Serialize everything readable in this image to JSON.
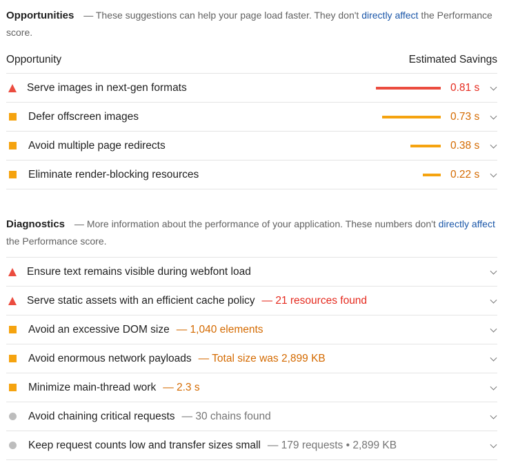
{
  "opportunities": {
    "title": "Opportunities",
    "description_parts": [
      "These suggestions can help your page load faster. They don't ",
      "directly affect",
      " the Performance score."
    ],
    "columns": {
      "left": "Opportunity",
      "right": "Estimated Savings"
    },
    "items": [
      {
        "title": "Serve images in next-gen formats",
        "savings": "0.81 s",
        "savings_seconds": 0.81,
        "status": "fail"
      },
      {
        "title": "Defer offscreen images",
        "savings": "0.73 s",
        "savings_seconds": 0.73,
        "status": "average"
      },
      {
        "title": "Avoid multiple page redirects",
        "savings": "0.38 s",
        "savings_seconds": 0.38,
        "status": "average"
      },
      {
        "title": "Eliminate render-blocking resources",
        "savings": "0.22 s",
        "savings_seconds": 0.22,
        "status": "average"
      }
    ]
  },
  "diagnostics": {
    "title": "Diagnostics",
    "description_parts": [
      "More information about the performance of your application. These numbers don't ",
      "directly affect",
      " the Performance score."
    ],
    "items": [
      {
        "title": "Ensure text remains visible during webfont load",
        "display": "",
        "status": "fail"
      },
      {
        "title": "Serve static assets with an efficient cache policy",
        "display": "— 21 resources found",
        "status": "fail"
      },
      {
        "title": "Avoid an excessive DOM size",
        "display": "— 1,040 elements",
        "status": "average"
      },
      {
        "title": "Avoid enormous network payloads",
        "display": "— Total size was 2,899 KB",
        "status": "average"
      },
      {
        "title": "Minimize main-thread work",
        "display": "— 2.3 s",
        "status": "average"
      },
      {
        "title": "Avoid chaining critical requests",
        "display": "— 30 chains found",
        "status": "info"
      },
      {
        "title": "Keep request counts low and transfer sizes small",
        "display": "— 179 requests • 2,899 KB",
        "status": "info"
      }
    ]
  },
  "colors": {
    "fail": "#eb4c3f",
    "average": "#f5a30f",
    "info": "#bdbdbd",
    "link": "#1a56a8"
  },
  "icons": {
    "fail": "triangle-icon",
    "average": "square-icon",
    "info": "circle-icon",
    "expand": "chevron-down-icon"
  }
}
